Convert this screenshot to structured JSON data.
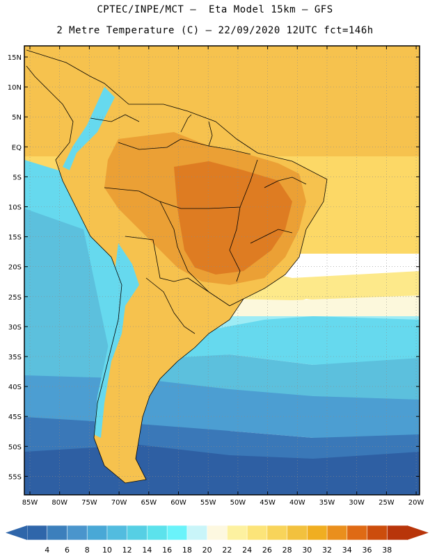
{
  "header": {
    "title_line1": "CPTEC/INPE/MCT –  Eta Model 15km – GFS",
    "title_line2": "2 Metre Temperature (C) – 22/09/2020 12UTC fct=146h"
  },
  "map": {
    "lat_labels": [
      "15N",
      "10N",
      "5N",
      "EQ",
      "5S",
      "10S",
      "15S",
      "20S",
      "25S",
      "30S",
      "35S",
      "40S",
      "45S",
      "50S",
      "55S"
    ],
    "lon_labels": [
      "85W",
      "80W",
      "75W",
      "70W",
      "65W",
      "60W",
      "55W",
      "50W",
      "45W",
      "40W",
      "35W",
      "30W",
      "25W",
      "20W"
    ],
    "field_colors": {
      "ocean_south_deep": "#2e5fa3",
      "ocean_south": "#3a78b8",
      "ocean_mid": "#4c9ed2",
      "ocean_cool": "#5cc0dd",
      "ocean_cyan": "#66d9ee",
      "ocean_light": "#9eecf5",
      "band_pale": "#fcf8dc",
      "band_yellow": "#fde98a",
      "tropics_light": "#fcd866",
      "tropics": "#f6c24e",
      "land_hot": "#eba035",
      "land_hotter": "#de7c22"
    }
  },
  "colorbar": {
    "labels": [
      "4",
      "6",
      "8",
      "10",
      "12",
      "14",
      "16",
      "18",
      "20",
      "22",
      "24",
      "26",
      "28",
      "30",
      "32",
      "34",
      "36",
      "38"
    ],
    "colors": [
      "#2f66aa",
      "#3c7fbc",
      "#4a95cc",
      "#49a8d6",
      "#52bcdf",
      "#56cfe4",
      "#5ce2ec",
      "#6af3fa",
      "#c9f5f9",
      "#fdf8e0",
      "#fdf1a0",
      "#fce479",
      "#f8d45a",
      "#f2c13e",
      "#f0ae21",
      "#ea8f1d",
      "#df6a14",
      "#cc4d0c",
      "#b8350a"
    ]
  }
}
